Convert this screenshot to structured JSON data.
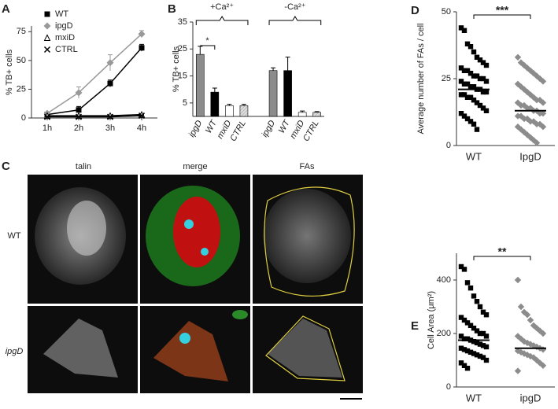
{
  "chart_data": [
    {
      "type": "line",
      "label": "A",
      "y_label": "% TB+ cells",
      "categories": [
        "1h",
        "2h",
        "3h",
        "4h"
      ],
      "series": [
        {
          "name": "WT",
          "color": "#000000",
          "marker": "square",
          "values": [
            3,
            7,
            30,
            61
          ],
          "errors": [
            1,
            3,
            3,
            3
          ]
        },
        {
          "name": "ipgD",
          "color": "#999999",
          "marker": "diamond",
          "values": [
            4,
            22,
            48,
            73
          ],
          "errors": [
            1,
            5,
            7,
            3
          ]
        },
        {
          "name": "mxiD",
          "color": "#000000",
          "marker": "triangle",
          "values": [
            2,
            2,
            2,
            3
          ],
          "errors": [
            0,
            0,
            0,
            0
          ]
        },
        {
          "name": "CTRL",
          "color": "#000000",
          "marker": "x",
          "values": [
            1,
            1,
            1,
            2
          ],
          "errors": [
            0,
            0,
            0,
            0
          ]
        }
      ],
      "ylim": [
        0,
        80
      ],
      "yticks": [
        0,
        25,
        50,
        75
      ],
      "legend": "top-left"
    },
    {
      "type": "bar",
      "label": "B",
      "y_label": "% TB+ cells",
      "groups": [
        "+Ca²⁺",
        "-Ca²⁺"
      ],
      "categories": [
        "ipgD",
        "WT",
        "mxiD",
        "CTRL",
        "ipgD",
        "WT",
        "mxiD",
        "CTRL"
      ],
      "values": [
        23,
        9,
        4,
        4,
        17,
        17,
        1.5,
        1.5
      ],
      "errors": [
        3,
        1.5,
        0.5,
        0.5,
        1,
        5,
        0.5,
        0.3
      ],
      "colors": [
        "#8c8c8c",
        "#000000",
        "#ffffff",
        "#cccccc",
        "#8c8c8c",
        "#000000",
        "#ffffff",
        "#cccccc"
      ],
      "annotation": "*",
      "ylim": [
        0,
        35
      ],
      "yticks": [
        5,
        15,
        25,
        35
      ]
    },
    {
      "type": "strip",
      "label": "D",
      "y_label": "Average number of FAs / cell",
      "categories": [
        "WT",
        "IpgD"
      ],
      "series": [
        {
          "color": "#000000",
          "marker": "square",
          "mean": 21,
          "values": [
            44,
            43,
            38,
            37,
            35,
            33,
            32,
            31,
            30,
            29,
            28,
            28,
            27,
            26,
            26,
            25,
            25,
            24,
            24,
            23,
            23,
            22,
            22,
            21,
            21,
            20,
            20,
            19,
            19,
            18,
            18,
            17,
            16,
            15,
            14,
            13,
            12,
            11,
            10,
            9,
            8,
            6
          ]
        },
        {
          "color": "#8c8c8c",
          "marker": "diamond",
          "mean": 13,
          "values": [
            33,
            31,
            30,
            29,
            28,
            27,
            26,
            25,
            24,
            23,
            22,
            21,
            20,
            19,
            18,
            17,
            17,
            16,
            16,
            15,
            15,
            14,
            14,
            13,
            13,
            12,
            12,
            11,
            11,
            10,
            10,
            9,
            9,
            8,
            8,
            7,
            7,
            6,
            5,
            4,
            3,
            2,
            1
          ]
        }
      ],
      "annotation": "***",
      "ylim": [
        0,
        50
      ],
      "yticks": [
        0,
        25,
        50
      ]
    },
    {
      "type": "strip",
      "label": "E",
      "y_label": "Cell Area (μm²)",
      "categories": [
        "WT",
        "ipgD"
      ],
      "series": [
        {
          "color": "#000000",
          "marker": "square",
          "mean": 175,
          "values": [
            450,
            440,
            390,
            370,
            340,
            320,
            300,
            280,
            270,
            260,
            250,
            240,
            230,
            220,
            210,
            200,
            200,
            190,
            190,
            180,
            180,
            175,
            170,
            165,
            160,
            155,
            150,
            145,
            140,
            135,
            130,
            125,
            120,
            115,
            110,
            100,
            90,
            80,
            70
          ]
        },
        {
          "color": "#8c8c8c",
          "marker": "diamond",
          "mean": 145,
          "values": [
            400,
            300,
            280,
            270,
            250,
            230,
            220,
            210,
            200,
            190,
            180,
            170,
            165,
            160,
            155,
            150,
            145,
            140,
            135,
            130,
            125,
            120,
            115,
            110,
            100,
            90,
            80,
            60
          ]
        }
      ],
      "annotation": "**",
      "ylim": [
        0,
        500
      ],
      "yticks": [
        0,
        200,
        400
      ]
    }
  ],
  "image_panel": {
    "label": "C",
    "columns": [
      "talin",
      "merge",
      "FAs"
    ],
    "rows": [
      "WT",
      "ipgD"
    ]
  }
}
